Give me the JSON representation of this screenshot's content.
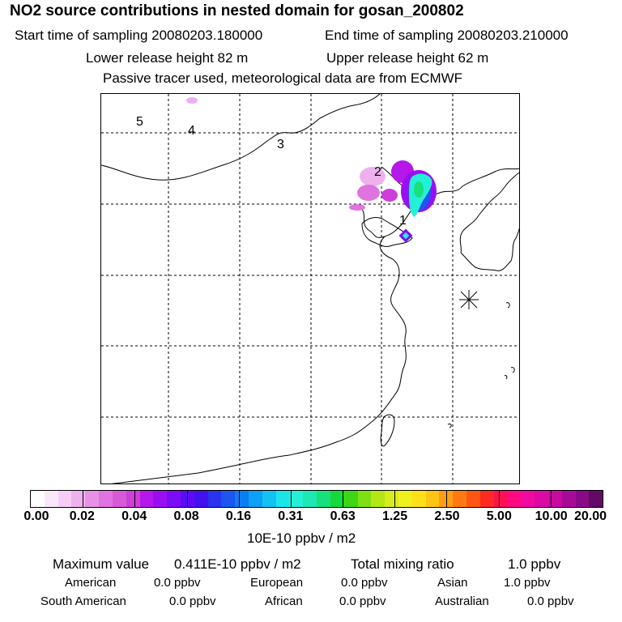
{
  "header": {
    "title": "NO2 source contributions in nested domain for gosan_200802",
    "start_label": "Start time of sampling 20080203.180000",
    "end_label": "End time of sampling 20080203.210000",
    "lower_label": "Lower release height   82 m",
    "upper_label": "Upper release height   62 m",
    "note": "Passive tracer used, meteorological data are from ECMWF"
  },
  "chart_data": {
    "type": "heatmap",
    "title": "NO2 source contributions in nested domain for gosan_200802",
    "colorbar": {
      "levels": [
        "0.00",
        "0.02",
        "0.04",
        "0.08",
        "0.16",
        "0.31",
        "0.63",
        "1.25",
        "2.50",
        "5.00",
        "10.00",
        "20.00"
      ],
      "unit_label": "10E-10 ppbv / m2",
      "colors": [
        "#ffffff",
        "#fbe7fb",
        "#f5cef5",
        "#eeb1ee",
        "#e790e7",
        "#df73df",
        "#d75ad7",
        "#cd3fd8",
        "#b518e8",
        "#9b0ef2",
        "#7d0cf5",
        "#5f0af5",
        "#4311f0",
        "#2a33ee",
        "#1c55ef",
        "#0a7ef2",
        "#0c9ff5",
        "#12c2f2",
        "#1ae6ea",
        "#24f0d8",
        "#1ee8b4",
        "#18e07a",
        "#14d93c",
        "#3ed614",
        "#7ee014",
        "#b2e814",
        "#d6ec1e",
        "#f0ef20",
        "#ffe119",
        "#ffc414",
        "#ff9e12",
        "#ff7a12",
        "#ff5614",
        "#ff2a22",
        "#ff1050",
        "#ff0a80",
        "#f00aa0",
        "#dc0aa4",
        "#c80aa0",
        "#a80a98",
        "#880a88",
        "#620a66"
      ]
    },
    "receptor_labels": [
      "5",
      "4",
      "3",
      "2",
      "1"
    ],
    "stats": {
      "max_label": "Maximum value",
      "max_value": "0.411E-10 ppbv / m2",
      "total_label": "Total mixing ratio",
      "total_value": "1.0 ppbv"
    },
    "sources": [
      {
        "name": "American",
        "value": "0.0 ppbv"
      },
      {
        "name": "European",
        "value": "0.0 ppbv"
      },
      {
        "name": "Asian",
        "value": "1.0 ppbv"
      },
      {
        "name": "South American",
        "value": "0.0 ppbv"
      },
      {
        "name": "African",
        "value": "0.0 ppbv"
      },
      {
        "name": "Australian",
        "value": "0.0 ppbv"
      }
    ]
  }
}
